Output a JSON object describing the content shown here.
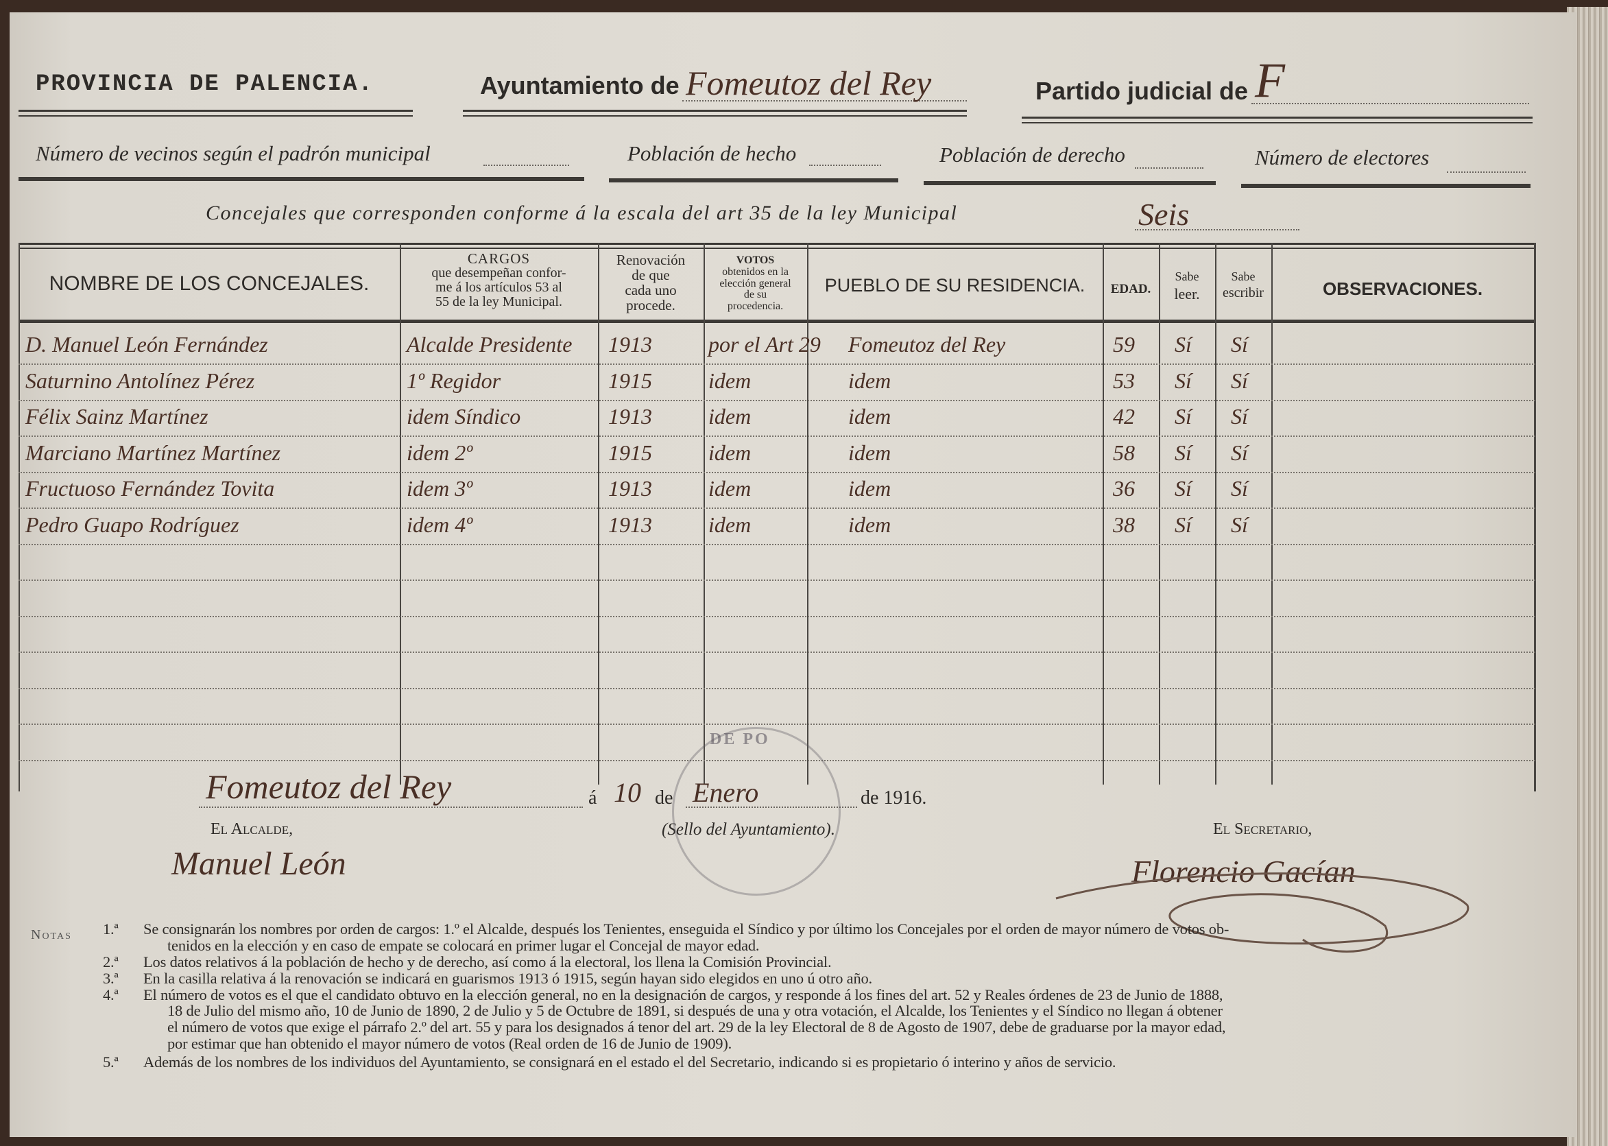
{
  "header": {
    "province": "PROVINCIA DE PALENCIA.",
    "ayuntamiento_label": "Ayuntamiento de",
    "ayuntamiento_value": "Fomeutoz del Rey",
    "partido_label": "Partido judicial de",
    "partido_value": "F",
    "vecinos_label": "Número de vecinos según el padrón municipal",
    "poblacion_hecho_label": "Población de hecho",
    "poblacion_derecho_label": "Población de derecho",
    "electores_label": "Número de electores",
    "concejales_label": "Concejales que corresponden conforme á la escala del art 35 de la ley Municipal",
    "concejales_value": "Seis"
  },
  "table": {
    "columns": [
      "NOMBRE DE LOS CONCEJALES.",
      "CARGOS que desempeñan conforme á los artículos 53 al 55 de la ley Municipal.",
      "Renovación de que cada uno procede.",
      "VOTOS obtenidos en la elección general de su procedencia.",
      "PUEBLO DE SU RESIDENCIA.",
      "EDAD.",
      "Sabe leer.",
      "Sabe escribir",
      "OBSERVACIONES."
    ],
    "col_cargos": {
      "title": "CARGOS",
      "l1": "que desempeñan confor-",
      "l2": "me á los artículos 53 al",
      "l3": "55 de la ley Municipal."
    },
    "col_renov": {
      "l1": "Renovación",
      "l2": "de que",
      "l3": "cada uno",
      "l4": "procede."
    },
    "col_votos": {
      "title": "VOTOS",
      "l1": "obtenidos en la",
      "l2": "elección general",
      "l3": "de su",
      "l4": "procedencia."
    },
    "col_leer": {
      "l1": "Sabe",
      "l2": "leer."
    },
    "col_escribir": {
      "l1": "Sabe",
      "l2": "escribir"
    },
    "rows": [
      {
        "nombre": "D. Manuel León Fernández",
        "cargo": "Alcalde Presidente",
        "renovacion": "1913",
        "votos": "por el Art 29",
        "pueblo": "Fomeutoz del Rey",
        "edad": "59",
        "leer": "Sí",
        "escribir": "Sí"
      },
      {
        "nombre": "Saturnino Antolínez Pérez",
        "cargo": "1º Regidor",
        "renovacion": "1915",
        "votos": "idem",
        "pueblo": "idem",
        "edad": "53",
        "leer": "Sí",
        "escribir": "Sí"
      },
      {
        "nombre": "Félix Sainz Martínez",
        "cargo": "idem Síndico",
        "renovacion": "1913",
        "votos": "idem",
        "pueblo": "idem",
        "edad": "42",
        "leer": "Sí",
        "escribir": "Sí"
      },
      {
        "nombre": "Marciano Martínez Martínez",
        "cargo": "idem 2º",
        "renovacion": "1915",
        "votos": "idem",
        "pueblo": "idem",
        "edad": "58",
        "leer": "Sí",
        "escribir": "Sí"
      },
      {
        "nombre": "Fructuoso Fernández Tovita",
        "cargo": "idem 3º",
        "renovacion": "1913",
        "votos": "idem",
        "pueblo": "idem",
        "edad": "36",
        "leer": "Sí",
        "escribir": "Sí"
      },
      {
        "nombre": "Pedro Guapo Rodríguez",
        "cargo": "idem 4º",
        "renovacion": "1913",
        "votos": "idem",
        "pueblo": "idem",
        "edad": "38",
        "leer": "Sí",
        "escribir": "Sí"
      }
    ]
  },
  "footer": {
    "place": "Fomeutoz del Rey",
    "a": "á",
    "day": "10",
    "de1": "de",
    "month": "Enero",
    "year": "de 1916.",
    "alcalde_label": "El Alcalde,",
    "alcalde_signature": "Manuel León",
    "sello_label": "(Sello del Ayuntamiento).",
    "secretario_label": "El Secretario,",
    "secretario_signature": "Florencio Gacían",
    "stamp_text": "DE PO"
  },
  "notes": {
    "title": "Notas",
    "items": [
      {
        "num": "1.ª",
        "lines": [
          "Se consignarán los nombres por orden de cargos: 1.º el Alcalde, después los Tenientes, enseguida el Síndico y por último los Concejales por el orden de mayor número de votos ob-",
          "tenidos en la elección y en caso de empate se colocará en primer lugar el Concejal de mayor edad."
        ]
      },
      {
        "num": "2.ª",
        "lines": [
          "Los datos relativos á la población de hecho y de derecho, así como á la electoral, los llena la Comisión Provincial."
        ]
      },
      {
        "num": "3.ª",
        "lines": [
          "En la casilla relativa á la renovación se indicará en guarismos 1913 ó 1915, según hayan sido elegidos en uno ú otro año."
        ]
      },
      {
        "num": "4.ª",
        "lines": [
          "El número de votos es el que el candidato obtuvo en la elección general, no en la designación de cargos, y responde á los fines del art. 52 y Reales órdenes de 23 de Junio de 1888,",
          "18 de Julio del mismo año, 10 de Junio de 1890, 2 de Julio y 5 de Octubre de 1891, si después de una y otra votación, el Alcalde, los Tenientes y el Síndico no llegan á obtener",
          "el número de votos que exige el párrafo 2.º del art. 55 y para los designados á tenor del art. 29 de la ley Electoral de 8 de Agosto de 1907, debe de graduarse por la mayor edad,",
          "por estimar que han obtenido el mayor número de votos (Real orden de 16 de Junio de 1909)."
        ]
      },
      {
        "num": "5.ª",
        "lines": [
          "Además de los nombres de los individuos del Ayuntamiento, se consignará en el estado el del Secretario, indicando si es propietario ó interino y años de servicio."
        ]
      }
    ]
  },
  "colors": {
    "paper": "#dedad2",
    "ink": "#2e2b28",
    "handwriting": "#4a3026"
  }
}
